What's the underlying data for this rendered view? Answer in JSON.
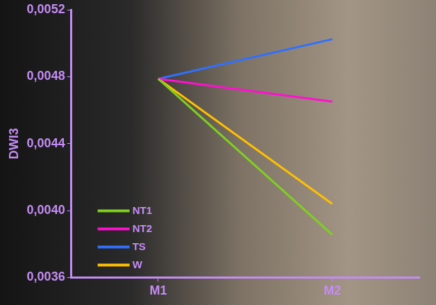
{
  "chart_data": {
    "type": "line",
    "y_label": "DWI3",
    "categories": [
      "M1",
      "M2"
    ],
    "series": [
      {
        "name": "NT1",
        "color": "#80d020",
        "values": [
          0.004787,
          0.003855
        ]
      },
      {
        "name": "NT2",
        "color": "#ff10d0",
        "values": [
          0.004787,
          0.004651
        ]
      },
      {
        "name": "TS",
        "color": "#3070ff",
        "values": [
          0.004787,
          0.005024
        ]
      },
      {
        "name": "W",
        "color": "#ffc000",
        "values": [
          0.004787,
          0.00404
        ]
      }
    ],
    "ylim": [
      0.0036,
      0.0052
    ],
    "yticks": [
      {
        "value": 0.0036,
        "label": "0,0036"
      },
      {
        "value": 0.004,
        "label": "0,0040"
      },
      {
        "value": 0.0044,
        "label": "0,0044"
      },
      {
        "value": 0.0048,
        "label": "0,0048"
      },
      {
        "value": 0.0052,
        "label": "0,0052"
      }
    ],
    "grid": false,
    "legend": "lower left"
  }
}
